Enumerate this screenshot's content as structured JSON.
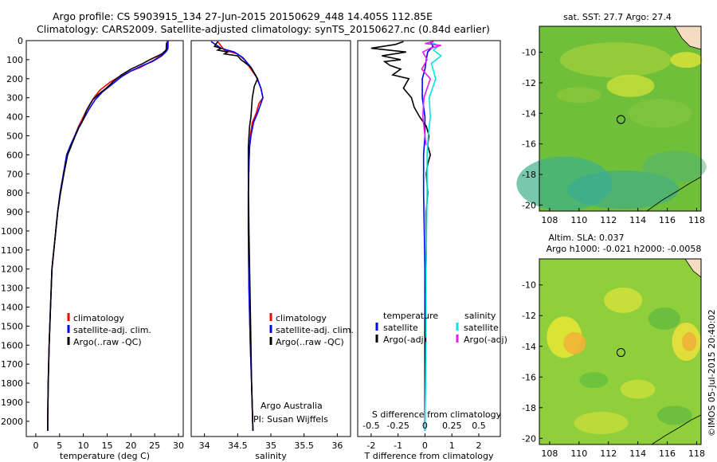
{
  "header": {
    "line1": "Argo profile: CS 5903915_134 27-Jun-2015 20150629_448 14.405S 112.85E",
    "line2": "Climatology: CARS2009. Satellite-adjusted climatology: synTS_20150627.nc (0.84d earlier)"
  },
  "footer": {
    "credit": "Argo Australia",
    "pi": "PI: Susan Wijffels",
    "stamp": "©IMOS 05-Jul-2015 20:40:02"
  },
  "colors": {
    "climatology": "#ff0000",
    "satellite": "#0000ff",
    "argo": "#000000",
    "salinity_satellite": "#00e5e5",
    "salinity_argo": "#e61ee6"
  },
  "chart_data": [
    {
      "type": "line",
      "xlabel": "temperature (deg C)",
      "ylabel": "",
      "xlim": [
        -2,
        31
      ],
      "ylim": [
        2080,
        0
      ],
      "xticks": [
        0,
        5,
        10,
        15,
        20,
        25,
        30
      ],
      "yticks": [
        0,
        100,
        200,
        300,
        400,
        500,
        600,
        700,
        800,
        900,
        1000,
        1100,
        1200,
        1300,
        1400,
        1500,
        1600,
        1700,
        1800,
        1900,
        2000
      ],
      "legend": [
        "climatology",
        "satellite-adj. clim.",
        "Argo(..raw -QC)"
      ],
      "legend_placement": "lower-left",
      "series": [
        {
          "name": "climatology",
          "color": "#ff0000",
          "x": [
            27.6,
            27.6,
            27.2,
            25,
            23.5,
            22,
            20,
            17.5,
            15.5,
            13.5,
            12.2,
            11,
            10,
            9,
            8.2,
            7.3,
            6.5,
            5.8,
            5.1,
            4.6,
            4.2,
            3.8,
            3.4,
            3.1,
            2.8,
            2.6,
            2.5,
            2.5
          ],
          "y": [
            0,
            50,
            60,
            100,
            120,
            140,
            160,
            190,
            220,
            260,
            300,
            350,
            400,
            450,
            500,
            550,
            600,
            700,
            800,
            900,
            1000,
            1100,
            1200,
            1400,
            1600,
            1800,
            2000,
            2050
          ]
        },
        {
          "name": "satellite-adj. clim.",
          "color": "#0000ff",
          "x": [
            27.8,
            27.8,
            27.5,
            26.5,
            24.5,
            22.5,
            20,
            18,
            16,
            14,
            12.5,
            11.2,
            10.1,
            9.1,
            8.2,
            7.3,
            6.5,
            5.8,
            5.1,
            4.6,
            4.2,
            3.8,
            3.4,
            3.1,
            2.8,
            2.6,
            2.5,
            2.5
          ],
          "y": [
            0,
            40,
            55,
            80,
            110,
            130,
            160,
            190,
            230,
            270,
            310,
            360,
            410,
            450,
            500,
            550,
            600,
            700,
            800,
            900,
            1000,
            1100,
            1200,
            1400,
            1600,
            1800,
            2000,
            2050
          ]
        },
        {
          "name": "Argo(..raw -QC)",
          "color": "#000000",
          "x": [
            27.5,
            27.4,
            26.5,
            24,
            22.5,
            20,
            18,
            16.5,
            14.8,
            13.3,
            12,
            11.3,
            10.6,
            10.2,
            9.7,
            9,
            8.3,
            7.5,
            6.7,
            5.9,
            5.2,
            4.6,
            4.2,
            3.8,
            3.4,
            3.1,
            2.8,
            2.6,
            2.5,
            2.5
          ],
          "y": [
            10,
            50,
            70,
            100,
            120,
            150,
            180,
            210,
            250,
            280,
            310,
            340,
            370,
            400,
            430,
            460,
            500,
            550,
            600,
            700,
            800,
            900,
            1000,
            1100,
            1200,
            1400,
            1600,
            1800,
            2000,
            2050
          ]
        }
      ]
    },
    {
      "type": "line",
      "xlabel": "salinity",
      "ylabel": "",
      "xlim": [
        33.8,
        36.2
      ],
      "ylim": [
        2080,
        0
      ],
      "xticks": [
        34,
        34.5,
        35,
        35.5,
        36
      ],
      "legend": [
        "climatology",
        "satellite-adj. clim.",
        "Argo(..raw -QC)"
      ],
      "legend_placement": "lower-right",
      "series": [
        {
          "name": "climatology",
          "color": "#ff0000",
          "x": [
            34.2,
            34.3,
            34.5,
            34.6,
            34.7,
            34.8,
            34.85,
            34.88,
            34.82,
            34.78,
            34.72,
            34.69,
            34.68,
            34.67,
            34.66,
            34.66,
            34.67,
            34.69,
            34.71,
            34.73
          ],
          "y": [
            5,
            50,
            70,
            100,
            150,
            200,
            250,
            300,
            330,
            380,
            430,
            500,
            560,
            650,
            800,
            1000,
            1300,
            1600,
            1800,
            2050
          ]
        },
        {
          "name": "satellite-adj. clim.",
          "color": "#0000ff",
          "x": [
            34.1,
            34.25,
            34.45,
            34.58,
            34.7,
            34.78,
            34.85,
            34.88,
            34.85,
            34.8,
            34.74,
            34.7,
            34.68,
            34.67,
            34.66,
            34.66,
            34.67,
            34.69,
            34.71,
            34.73
          ],
          "y": [
            5,
            40,
            60,
            90,
            140,
            190,
            250,
            300,
            330,
            380,
            430,
            500,
            560,
            650,
            800,
            1000,
            1300,
            1600,
            1800,
            2050
          ]
        },
        {
          "name": "Argo(..raw -QC)",
          "color": "#000000",
          "x": [
            34.2,
            34.15,
            34.25,
            34.2,
            34.35,
            34.3,
            34.5,
            34.55,
            34.7,
            34.75,
            34.8,
            34.75,
            34.72,
            34.7,
            34.68,
            34.67,
            34.66,
            34.66,
            34.67,
            34.69,
            34.71,
            34.73
          ],
          "y": [
            5,
            30,
            40,
            50,
            60,
            70,
            80,
            100,
            140,
            170,
            200,
            240,
            300,
            400,
            450,
            500,
            560,
            700,
            1000,
            1400,
            1800,
            2050
          ]
        }
      ]
    },
    {
      "type": "line",
      "xlabel": "T difference from climatology",
      "x2label": "S difference from climatology",
      "ylabel": "",
      "xlim": [
        -2.5,
        2.8
      ],
      "x2lim": [
        -0.625,
        0.7
      ],
      "ylim": [
        2080,
        0
      ],
      "xticks": [
        -2,
        -1,
        0,
        1,
        2
      ],
      "xtick_labels": [
        "-2",
        "-1",
        "0",
        "1",
        "2"
      ],
      "x2ticks": [
        -0.5,
        -0.25,
        0,
        0.25,
        0.5
      ],
      "x2tick_labels": [
        "-0.5",
        "-0.25",
        "0",
        "0.25",
        "0.5"
      ],
      "legend_titles": [
        "temperature",
        "salinity"
      ],
      "legend": [
        "satellite",
        "Argo(-adj)",
        "satellite",
        "Argo(-adj)"
      ],
      "legend_placement": "lower",
      "series": [
        {
          "name": "satellite",
          "color": "#0000ff",
          "axis": "T",
          "x": [
            0.2,
            0.3,
            0.1,
            0.05,
            0,
            -0.1,
            -0.1,
            0,
            0,
            -0.05,
            -0.05,
            0,
            0,
            0
          ],
          "y": [
            5,
            30,
            60,
            100,
            150,
            200,
            300,
            400,
            500,
            600,
            800,
            1200,
            1600,
            2050
          ]
        },
        {
          "name": "Argo(-adj)",
          "color": "#000000",
          "axis": "T",
          "x": [
            -0.8,
            -1.1,
            -2.0,
            -0.7,
            -1.6,
            -0.9,
            -1.5,
            -1.3,
            -0.9,
            -1.2,
            -0.6,
            -0.8,
            -0.5,
            -0.4,
            -0.2,
            0.05,
            0.15,
            0.1,
            0.2,
            0.1,
            0.05,
            0.1,
            0.05,
            0.05,
            0,
            0
          ],
          "y": [
            5,
            20,
            40,
            60,
            80,
            100,
            110,
            130,
            150,
            180,
            200,
            250,
            300,
            350,
            400,
            450,
            500,
            550,
            600,
            650,
            700,
            800,
            900,
            1100,
            1500,
            2050
          ]
        },
        {
          "name": "satellite",
          "color": "#00e5e5",
          "axis": "S",
          "x": [
            0.05,
            0.1,
            0.12,
            0.08,
            0.15,
            0.06,
            0.1,
            0.04,
            0.05,
            0.03,
            0.02,
            0.02,
            0.01,
            0.01,
            0
          ],
          "y": [
            5,
            20,
            30,
            50,
            80,
            120,
            200,
            300,
            400,
            500,
            600,
            800,
            1200,
            1600,
            2050
          ]
        },
        {
          "name": "Argo(-adj)",
          "color": "#e61ee6",
          "axis": "S",
          "x": [
            0.08,
            0.0,
            0.15,
            0.05,
            -0.02,
            0.02,
            -0.03,
            0.05,
            -0.01,
            -0.02,
            0,
            0.01
          ],
          "y": [
            5,
            15,
            25,
            40,
            60,
            100,
            150,
            200,
            300,
            400,
            500,
            550
          ]
        }
      ]
    },
    {
      "type": "heatmap",
      "title": "sat. SST: 27.7 Argo: 27.4",
      "xlim": [
        107.3,
        118.3
      ],
      "ylim": [
        -20.4,
        -8.3
      ],
      "xticks": [
        108,
        110,
        112,
        114,
        116,
        118
      ],
      "yticks": [
        -10,
        -12,
        -14,
        -16,
        -18,
        -20
      ],
      "marker": {
        "lon": 112.85,
        "lat": -14.405
      },
      "legend": []
    },
    {
      "type": "heatmap",
      "title": "Altim. SLA: 0.037",
      "subtitle": "Argo h1000: -0.021 h2000: -0.0058",
      "xlim": [
        107.3,
        118.3
      ],
      "ylim": [
        -20.4,
        -8.3
      ],
      "xticks": [
        108,
        110,
        112,
        114,
        116,
        118
      ],
      "yticks": [
        -10,
        -12,
        -14,
        -16,
        -18,
        -20
      ],
      "marker": {
        "lon": 112.85,
        "lat": -14.405
      },
      "legend": []
    }
  ]
}
